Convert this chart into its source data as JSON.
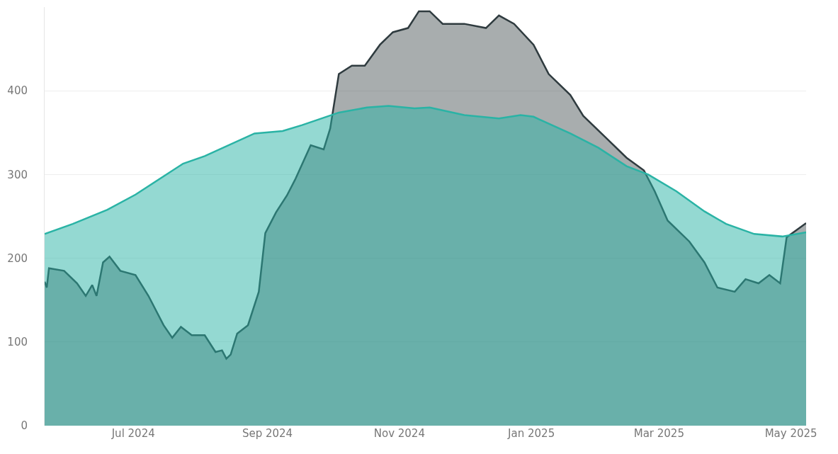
{
  "chart_data": {
    "type": "area",
    "xlim": [
      "2024-05-21",
      "2025-05-08"
    ],
    "ylim": [
      0,
      500
    ],
    "yticks": [
      0,
      100,
      200,
      300,
      400
    ],
    "xticks": [
      {
        "value": "2024-07-01",
        "label": "Jul 2024"
      },
      {
        "value": "2024-09-01",
        "label": "Sep 2024"
      },
      {
        "value": "2024-11-01",
        "label": "Nov 2024"
      },
      {
        "value": "2025-01-01",
        "label": "Jan 2025"
      },
      {
        "value": "2025-03-01",
        "label": "Mar 2025"
      },
      {
        "value": "2025-05-01",
        "label": "May 2025"
      }
    ],
    "grid": "y",
    "marker": "none",
    "line_style": "solid",
    "series": [
      {
        "color": "#2f3b3f",
        "x": [
          "2024-05-21",
          "2024-05-22",
          "2024-05-23",
          "2024-05-30",
          "2024-06-05",
          "2024-06-09",
          "2024-06-12",
          "2024-06-14",
          "2024-06-17",
          "2024-06-20",
          "2024-06-25",
          "2024-07-02",
          "2024-07-08",
          "2024-07-15",
          "2024-07-19",
          "2024-07-23",
          "2024-07-28",
          "2024-08-03",
          "2024-08-08",
          "2024-08-11",
          "2024-08-13",
          "2024-08-15",
          "2024-08-18",
          "2024-08-23",
          "2024-08-28",
          "2024-08-31",
          "2024-09-05",
          "2024-09-10",
          "2024-09-14",
          "2024-09-21",
          "2024-09-27",
          "2024-09-30",
          "2024-10-04",
          "2024-10-10",
          "2024-10-16",
          "2024-10-23",
          "2024-10-29",
          "2024-11-05",
          "2024-11-10",
          "2024-11-15",
          "2024-11-21",
          "2024-12-01",
          "2024-12-11",
          "2024-12-17",
          "2024-12-24",
          "2025-01-02",
          "2025-01-09",
          "2025-01-19",
          "2025-01-25",
          "2025-02-04",
          "2025-02-14",
          "2025-02-22",
          "2025-02-27",
          "2025-03-05",
          "2025-03-15",
          "2025-03-22",
          "2025-03-28",
          "2025-04-05",
          "2025-04-10",
          "2025-04-16",
          "2025-04-21",
          "2025-04-26",
          "2025-04-29",
          "2025-05-08"
        ],
        "values": [
          172,
          165,
          188,
          185,
          170,
          155,
          168,
          155,
          195,
          202,
          185,
          180,
          155,
          120,
          105,
          118,
          108,
          108,
          88,
          90,
          80,
          85,
          110,
          120,
          160,
          230,
          255,
          275,
          295,
          335,
          330,
          355,
          420,
          430,
          430,
          455,
          470,
          475,
          495,
          495,
          480,
          480,
          475,
          490,
          480,
          455,
          420,
          395,
          370,
          345,
          320,
          305,
          280,
          245,
          220,
          195,
          165,
          160,
          175,
          170,
          180,
          170,
          225,
          242
        ]
      },
      {
        "color": "#2ab3a5",
        "x": [
          "2024-05-21",
          "2024-06-03",
          "2024-06-19",
          "2024-07-02",
          "2024-07-24",
          "2024-08-03",
          "2024-08-26",
          "2024-09-08",
          "2024-09-17",
          "2024-10-04",
          "2024-10-17",
          "2024-10-27",
          "2024-11-08",
          "2024-11-15",
          "2024-12-01",
          "2024-12-17",
          "2024-12-27",
          "2025-01-02",
          "2025-01-19",
          "2025-02-01",
          "2025-02-14",
          "2025-02-24",
          "2025-03-09",
          "2025-03-22",
          "2025-04-01",
          "2025-04-14",
          "2025-04-27",
          "2025-05-08"
        ],
        "values": [
          229,
          241,
          258,
          276,
          313,
          322,
          349,
          352,
          359,
          374,
          380,
          382,
          379,
          380,
          371,
          367,
          371,
          369,
          349,
          332,
          310,
          300,
          280,
          256,
          241,
          229,
          226,
          231
        ]
      }
    ]
  }
}
